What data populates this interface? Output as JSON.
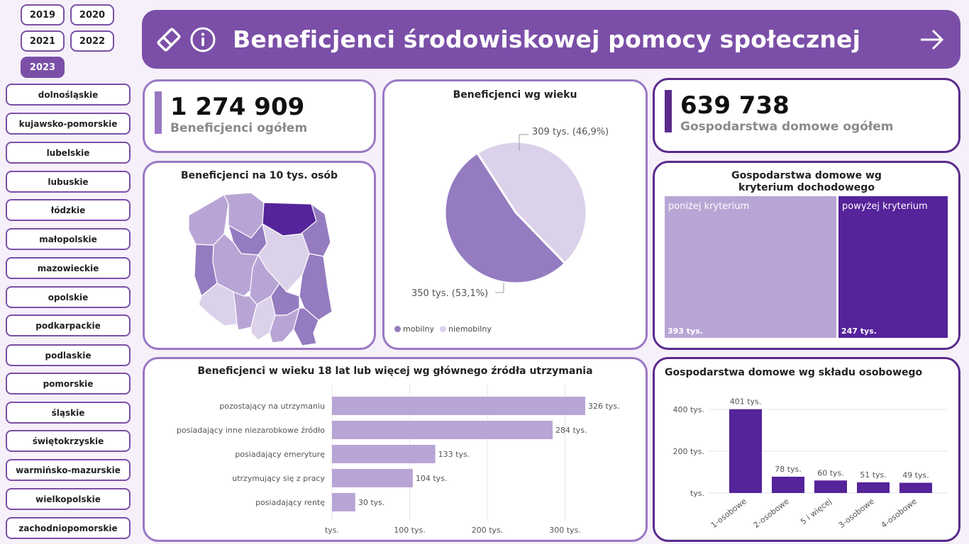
{
  "years": [
    "2019",
    "2020",
    "2021",
    "2022",
    "2023"
  ],
  "active_year": "2023",
  "regions": [
    "dolnośląskie",
    "kujawsko-pomorskie",
    "lubelskie",
    "lubuskie",
    "łódzkie",
    "małopolskie",
    "mazowieckie",
    "opolskie",
    "podkarpackie",
    "podlaskie",
    "pomorskie",
    "śląskie",
    "świętokrzyskie",
    "warmińsko-mazurskie",
    "wielkopolskie",
    "zachodniopomorskie"
  ],
  "header": {
    "title": "Beneficjenci środowiskowej pomocy społecznej"
  },
  "kpi_beneficiaries": {
    "value": "1 274 909",
    "label": "Beneficjenci ogółem",
    "color": "#9a78c4"
  },
  "kpi_households": {
    "value": "639 738",
    "label": "Gospodarstwa domowe ogółem",
    "color": "#5a2a8c"
  },
  "map": {
    "title": "Beneficjenci na 10 tys. osób"
  },
  "colors": {
    "light": "#b9a5d5",
    "medium": "#957bc0",
    "dark": "#55239a",
    "pale": "#dcd1ea"
  },
  "pie": {
    "title": "Beneficjenci wg wieku",
    "legend": [
      {
        "name": "mobilny",
        "color": "#957bc0"
      },
      {
        "name": "niemobilny",
        "color": "#dcd1ea"
      }
    ]
  },
  "treemap": {
    "title": "Gospodarstwa domowe wg kryterium dochodowego",
    "items": [
      {
        "label": "poniżej kryterium",
        "value": "393 tys.",
        "color": "#b9a5d5"
      },
      {
        "label": "powyżej kryterium",
        "value": "247 tys.",
        "color": "#55239a"
      }
    ]
  },
  "chart_data": [
    {
      "type": "pie",
      "title": "Beneficjenci wg wieku",
      "series": [
        {
          "name": "mobilny",
          "value": 350,
          "label": "350 tys. (53,1%)"
        },
        {
          "name": "niemobilny",
          "value": 309,
          "label": "309 tys. (46,9%)"
        }
      ]
    },
    {
      "type": "bar",
      "orientation": "horizontal",
      "title": "Beneficjenci w wieku 18 lat lub więcej wg głównego źródła utrzymania",
      "categories": [
        "pozostający na utrzymaniu",
        "posiadający inne niezarobkowe źródło",
        "posiadający emeryturę",
        "utrzymujący się z pracy",
        "posiadający rentę"
      ],
      "values": [
        326,
        284,
        133,
        104,
        30
      ],
      "value_labels": [
        "326 tys.",
        "284 tys.",
        "133 tys.",
        "104 tys.",
        "30 tys."
      ],
      "xticks": [
        {
          "v": 0,
          "t": "tys."
        },
        {
          "v": 100,
          "t": "100 tys."
        },
        {
          "v": 200,
          "t": "200 tys."
        },
        {
          "v": 300,
          "t": "300 tys."
        }
      ],
      "xlim": [
        0,
        335
      ],
      "color": "#b9a5d5"
    },
    {
      "type": "bar",
      "title": "Gospodarstwa domowe wg składu osobowego",
      "categories": [
        "1-osobowe",
        "2-osobowe",
        "5 i więcej",
        "3-osobowe",
        "4-osobowe"
      ],
      "values": [
        401,
        78,
        60,
        51,
        49
      ],
      "value_labels": [
        "401 tys.",
        "78 tys.",
        "60 tys.",
        "51 tys.",
        "49 tys."
      ],
      "yticks": [
        {
          "v": 0,
          "t": "tys."
        },
        {
          "v": 200,
          "t": "200 tys."
        },
        {
          "v": 400,
          "t": "400 tys."
        }
      ],
      "ylim": [
        0,
        420
      ],
      "color": "#55239a"
    },
    {
      "type": "treemap",
      "title": "Gospodarstwa domowe wg kryterium dochodowego",
      "series": [
        {
          "name": "poniżej kryterium",
          "value": 393
        },
        {
          "name": "powyżej kryterium",
          "value": 247
        }
      ]
    }
  ]
}
